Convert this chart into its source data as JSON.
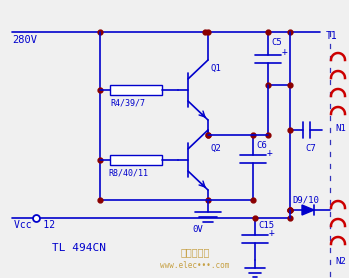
{
  "bg_color": "#f0f0f0",
  "line_color": "#0000cc",
  "red_color": "#cc0000",
  "dot_color": "#8b0000",
  "text_color": "#0000cc",
  "labels": {
    "v280": "280V",
    "vcc": "Vcc  12",
    "tl494": "TL 494CN",
    "r4": "R4/39/7",
    "r8": "R8/40/11",
    "q1": "Q1",
    "q2": "Q2",
    "c5": "C5",
    "c6": "C6",
    "c7": "C7",
    "c15": "C15",
    "d910": "D9/10",
    "t1": "T1",
    "n1": "N1",
    "n2": "N2",
    "ov": "0V",
    "plus": "+"
  }
}
